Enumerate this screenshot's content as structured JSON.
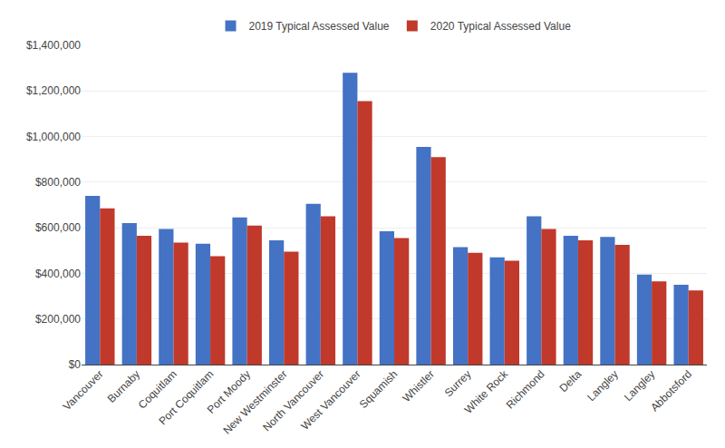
{
  "chart_data": {
    "type": "bar",
    "categories": [
      "Vancouver",
      "Burnaby",
      "Coquitlam",
      "Port Coquitlam",
      "Port Moody",
      "New Westminster",
      "North Vancouver",
      "West Vancouver",
      "Squamish",
      "Whistler",
      "Surrey",
      "White Rock",
      "Richmond",
      "Delta",
      "Langley",
      "Langley",
      "Abbotsford"
    ],
    "series": [
      {
        "name": "2019 Typical Assessed Value",
        "color": "#4472C4",
        "values": [
          740000,
          620000,
          595000,
          530000,
          645000,
          545000,
          705000,
          1280000,
          585000,
          955000,
          515000,
          470000,
          650000,
          565000,
          560000,
          395000,
          350000
        ]
      },
      {
        "name": "2020 Typical Assessed Value",
        "color": "#C0392B",
        "values": [
          685000,
          565000,
          535000,
          475000,
          610000,
          495000,
          650000,
          1155000,
          555000,
          910000,
          490000,
          455000,
          595000,
          545000,
          525000,
          365000,
          325000
        ]
      }
    ],
    "ylim": [
      0,
      1400000
    ],
    "yticks": [
      {
        "value": 0,
        "label": "$0"
      },
      {
        "value": 200000,
        "label": "$200,000"
      },
      {
        "value": 400000,
        "label": "$400,000"
      },
      {
        "value": 600000,
        "label": "$600,000"
      },
      {
        "value": 800000,
        "label": "$800,000"
      },
      {
        "value": 1000000,
        "label": "$1,000,000"
      },
      {
        "value": 1200000,
        "label": "$1,200,000"
      },
      {
        "value": 1400000,
        "label": "$1,400,000"
      }
    ],
    "grid": true,
    "legend": "top"
  }
}
